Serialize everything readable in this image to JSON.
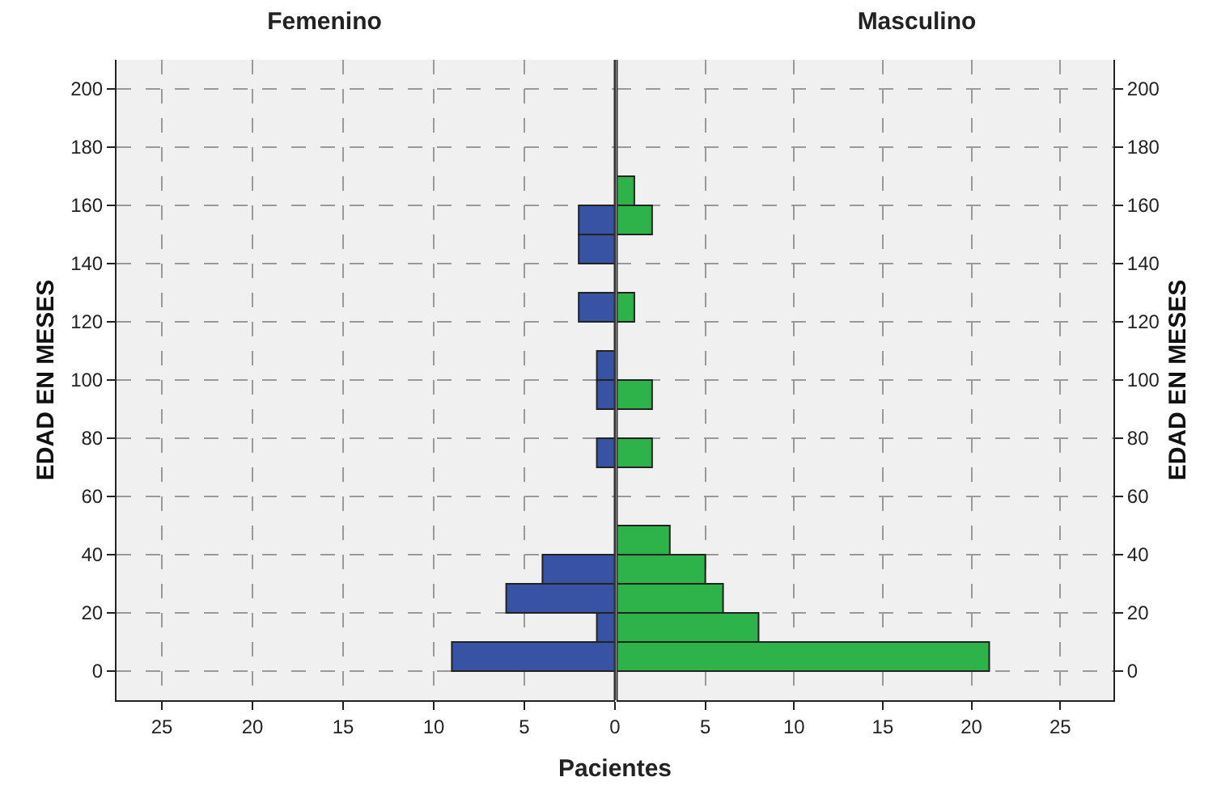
{
  "chart_data": [
    {
      "type": "histogram",
      "title": "Femenino",
      "orientation": "horizontal",
      "ylabel": "EDAD EN MESES",
      "xlabel": "Pacientes",
      "color": "#3953a4",
      "bins": [
        0,
        10,
        20,
        30,
        40,
        50,
        60,
        70,
        80,
        90,
        100,
        110,
        120,
        130,
        140,
        150,
        160,
        170
      ],
      "values": [
        9,
        1,
        6,
        4,
        0,
        0,
        0,
        1,
        0,
        1,
        1,
        0,
        2,
        0,
        2,
        2,
        0
      ],
      "xlim": [
        27.5,
        0
      ],
      "xticks": [
        0,
        5,
        10,
        15,
        20,
        25
      ],
      "ylim": [
        -10,
        210
      ],
      "yticks": [
        0,
        20,
        40,
        60,
        80,
        100,
        120,
        140,
        160,
        180,
        200
      ],
      "grid": true
    },
    {
      "type": "histogram",
      "title": "Masculino",
      "orientation": "horizontal",
      "ylabel": "EDAD EN MESES",
      "color": "#2eb34a",
      "bins": [
        0,
        10,
        20,
        30,
        40,
        50,
        60,
        70,
        80,
        90,
        100,
        110,
        120,
        130,
        140,
        150,
        160,
        170
      ],
      "values": [
        21,
        8,
        6,
        5,
        3,
        0,
        0,
        2,
        0,
        2,
        0,
        0,
        1,
        0,
        0,
        2,
        1
      ],
      "xlim": [
        0,
        28
      ],
      "xticks": [
        5,
        10,
        15,
        20,
        25
      ],
      "ylim": [
        -10,
        210
      ],
      "yticks": [
        0,
        20,
        40,
        60,
        80,
        100,
        120,
        140,
        160,
        180,
        200
      ],
      "grid": true
    }
  ]
}
